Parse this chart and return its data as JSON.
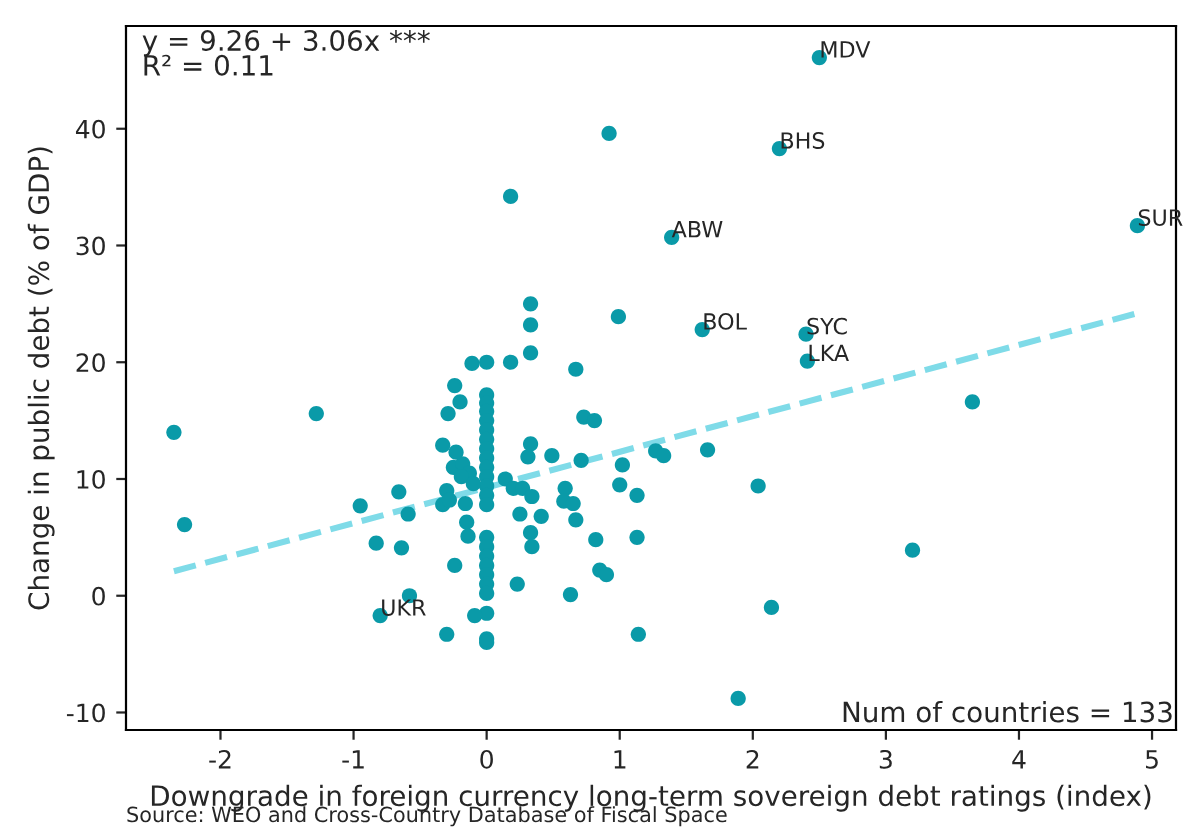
{
  "chart_data": {
    "type": "scatter",
    "xlabel": "Downgrade in foreign currency long-term sovereign debt ratings (index)",
    "ylabel": "Change in public debt (% of GDP)",
    "xlim": [
      -2.71,
      5.18
    ],
    "ylim": [
      -11.5,
      48.8
    ],
    "xticks": [
      -2,
      -1,
      0,
      1,
      2,
      3,
      4,
      5
    ],
    "yticks": [
      -10,
      0,
      10,
      20,
      30,
      40
    ],
    "grid": false,
    "marker": "circle",
    "series": [
      {
        "color": "#0a9aa8",
        "x": [
          0.92,
          0.18,
          0.33,
          0.33,
          0.99,
          0.33,
          -0.11,
          0,
          0.18,
          0.67,
          -0.24,
          -0.2,
          -1.28,
          -0.29,
          0.73,
          0.81,
          -2.35,
          -2.27,
          0,
          0,
          0,
          0,
          0,
          0,
          0,
          0,
          0,
          0,
          0,
          0,
          0,
          0,
          0,
          0,
          0,
          0,
          0,
          0,
          0,
          0,
          0,
          -0.33,
          -0.23,
          -0.25,
          -0.18,
          -0.13,
          -0.19,
          -0.1,
          -0.3,
          -0.33,
          -0.28,
          -0.16,
          -0.15,
          -0.14,
          -0.24,
          -0.3,
          -0.09,
          -0.95,
          -0.66,
          -0.59,
          -0.83,
          -0.64,
          -0.58,
          -0.8,
          0.14,
          0.2,
          0.27,
          0.33,
          0.31,
          0.34,
          0.25,
          0.41,
          0.33,
          0.34,
          0.23,
          0.49,
          0.59,
          0.58,
          0.65,
          0.67,
          0.71,
          0.82,
          0.85,
          0.9,
          0.63,
          1.02,
          1.0,
          1.13,
          1.13,
          1.14,
          1.27,
          2.5,
          2.2,
          4.89,
          1.39,
          1.62,
          2.4,
          2.41,
          3.65,
          1.33,
          1.66,
          2.04,
          3.2,
          2.14,
          1.89
        ],
        "values": [
          39.6,
          34.2,
          25.0,
          23.2,
          23.9,
          20.8,
          19.9,
          20.0,
          20.0,
          19.4,
          18.0,
          16.6,
          15.6,
          15.6,
          15.3,
          15.0,
          14.0,
          6.1,
          17.2,
          16.5,
          15.8,
          15.0,
          14.2,
          13.4,
          12.6,
          11.8,
          11.0,
          10.2,
          9.4,
          8.6,
          7.8,
          5.0,
          4.2,
          3.4,
          2.6,
          1.8,
          1.0,
          0.2,
          -1.5,
          -3.7,
          -4.0,
          12.9,
          12.3,
          11.0,
          11.3,
          10.5,
          10.2,
          9.6,
          9.0,
          7.8,
          8.2,
          7.9,
          6.3,
          5.1,
          2.6,
          -3.3,
          -1.7,
          7.7,
          8.9,
          7.0,
          4.5,
          4.1,
          0.0,
          -1.7,
          10.0,
          9.2,
          9.2,
          13.0,
          11.9,
          8.5,
          7.0,
          6.8,
          5.4,
          4.2,
          1.0,
          12.0,
          9.2,
          8.1,
          7.9,
          6.5,
          11.6,
          4.8,
          2.2,
          1.8,
          0.1,
          11.2,
          9.5,
          8.6,
          5.0,
          -3.3,
          12.4,
          46.1,
          38.3,
          31.7,
          30.7,
          22.8,
          22.4,
          20.1,
          16.6,
          12.0,
          12.5,
          9.4,
          3.9,
          -1.0,
          -8.8
        ]
      },
      {
        "type": "line",
        "color": "#7fdbe8",
        "line_style": "dashed",
        "marker": "none",
        "x": [
          -2.35,
          4.89
        ],
        "values": [
          2.1,
          24.2
        ]
      }
    ],
    "annotations": [
      "y = 9.26 + 3.06x ***\nR² = 0.11",
      "Num of countries = 133",
      "Source: WEO and Cross-Country Database of Fiscal Space",
      {
        "text": "MDV",
        "x": 2.5,
        "y": 46.1
      },
      {
        "text": "BHS",
        "x": 2.2,
        "y": 38.3
      },
      {
        "text": "SUR",
        "x": 4.89,
        "y": 31.7
      },
      {
        "text": "ABW",
        "x": 1.39,
        "y": 30.7
      },
      {
        "text": "BOL",
        "x": 1.62,
        "y": 22.8
      },
      {
        "text": "SYC",
        "x": 2.4,
        "y": 22.4
      },
      {
        "text": "LKA",
        "x": 2.41,
        "y": 20.1
      },
      {
        "text": "UKR",
        "x": -0.8,
        "y": -1.7
      }
    ]
  }
}
